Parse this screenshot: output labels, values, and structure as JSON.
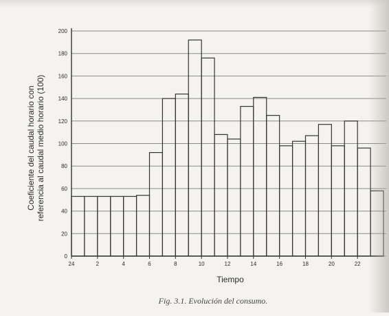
{
  "chart_data": {
    "type": "bar",
    "title": "",
    "xlabel": "Tiempo",
    "ylabel": "Coeficiente del caudal horario con referencia al caudal medio horario (100)",
    "ylabel_lines": [
      "Coeficiente del caudal horario con",
      "referencia al caudal medio horario (100)"
    ],
    "caption": "Fig. 3.1. Evolución del consumo.",
    "x_tick_labels": [
      "24",
      "2",
      "4",
      "6",
      "8",
      "10",
      "12",
      "14",
      "16",
      "18",
      "20",
      "22"
    ],
    "y_tick_labels": [
      "0",
      "20",
      "40",
      "60",
      "80",
      "100",
      "120",
      "140",
      "160",
      "180",
      "200"
    ],
    "ylim": [
      0,
      200
    ],
    "xlim": [
      0,
      24
    ],
    "grid": true,
    "categories": [
      "0-1",
      "1-2",
      "2-3",
      "3-4",
      "4-5",
      "5-6",
      "6-7",
      "7-8",
      "8-9",
      "9-10",
      "10-11",
      "11-12",
      "12-13",
      "13-14",
      "14-15",
      "15-16",
      "16-17",
      "17-18",
      "18-19",
      "19-20",
      "20-21",
      "21-22",
      "22-23",
      "23-24"
    ],
    "values": [
      53,
      53,
      53,
      53,
      53,
      54,
      92,
      140,
      144,
      192,
      176,
      108,
      104,
      133,
      141,
      125,
      98,
      102,
      107,
      117,
      98,
      120,
      96,
      58
    ]
  }
}
